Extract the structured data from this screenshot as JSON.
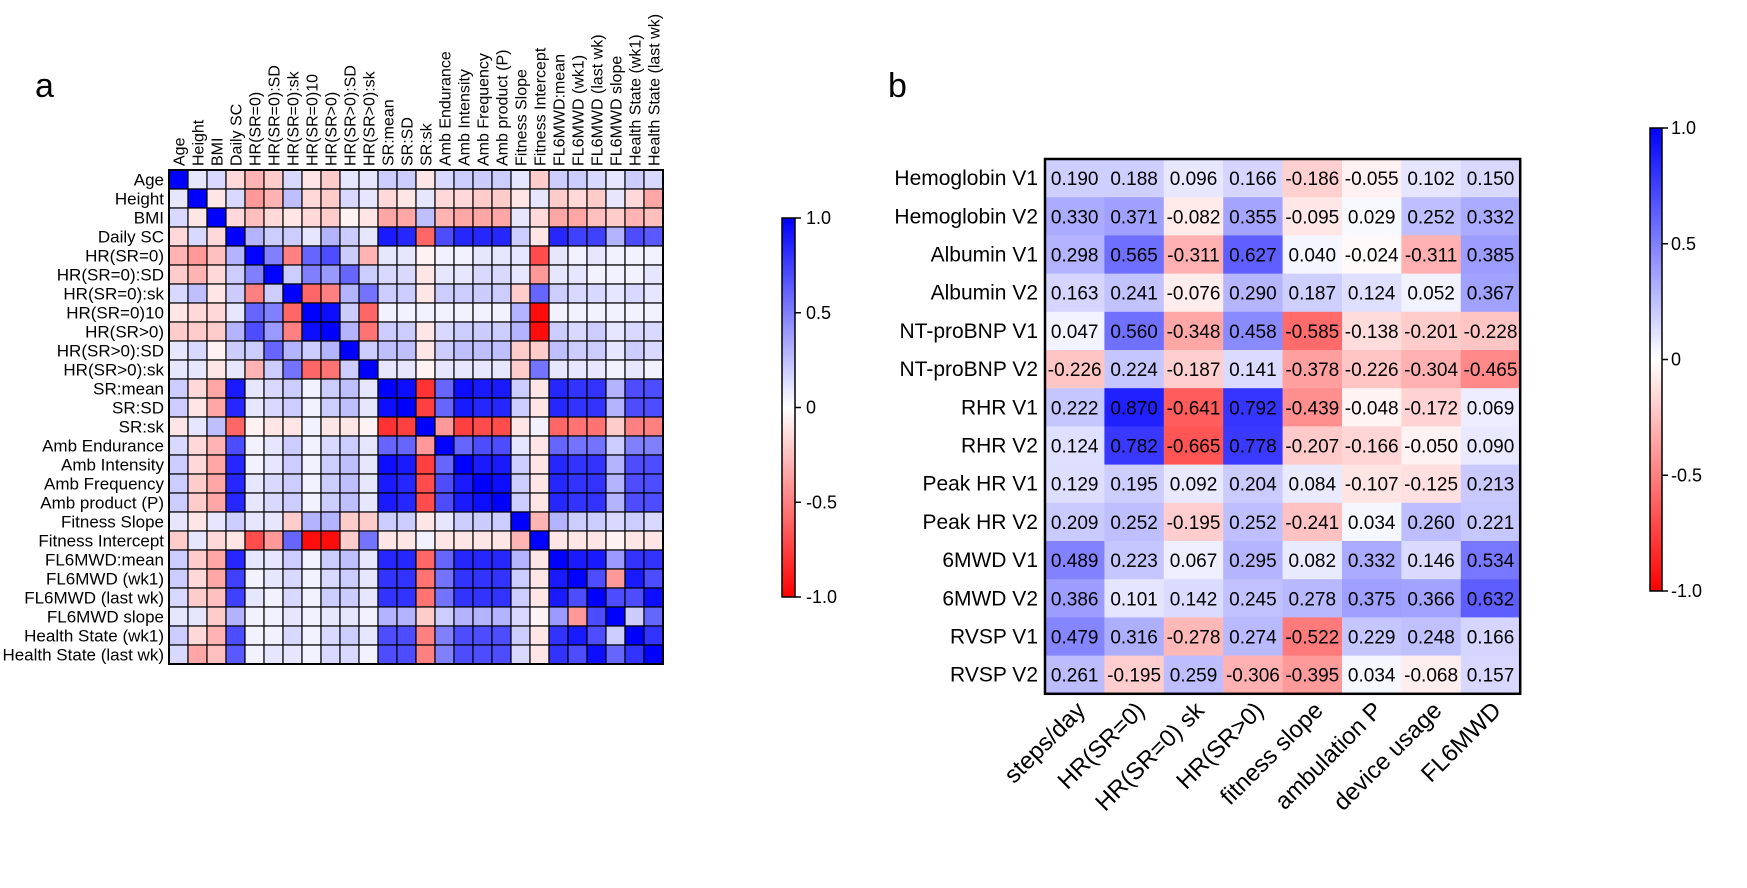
{
  "panels": {
    "a": "a",
    "b": "b"
  },
  "colors": {
    "positive": "#0000FF",
    "neutral": "#FFFFFF",
    "negative": "#FF0000"
  },
  "colorbar": {
    "ticks": [
      "1.0",
      "0.5",
      "0",
      "-0.5",
      "-1.0"
    ],
    "values": [
      1.0,
      0.5,
      0,
      -0.5,
      -1.0
    ]
  },
  "chart_data": [
    {
      "type": "heatmap",
      "panel": "a",
      "labels": [
        "Age",
        "Height",
        "BMI",
        "Daily SC",
        "HR(SR=0)",
        "HR(SR=0):SD",
        "HR(SR=0):sk",
        "HR(SR=0)10",
        "HR(SR>0)",
        "HR(SR>0):SD",
        "HR(SR>0):sk",
        "SR:mean",
        "SR:SD",
        "SR:sk",
        "Amb Endurance",
        "Amb Intensity",
        "Amb Frequency",
        "Amb product (P)",
        "Fitness Slope",
        "Fitness Intercept",
        "FL6MWD:mean",
        "FL6MWD (wk1)",
        "FL6MWD (last wk)",
        "FL6MWD slope",
        "Health State (wk1)",
        "Health State (last wk)"
      ],
      "values": [
        [
          1.0,
          0.1,
          0.15,
          -0.15,
          -0.3,
          -0.2,
          0.15,
          -0.1,
          -0.2,
          0.1,
          0.1,
          0.2,
          0.2,
          -0.1,
          0.15,
          0.2,
          0.2,
          0.2,
          0.1,
          -0.2,
          0.2,
          0.2,
          0.15,
          0.1,
          0.2,
          0.15
        ],
        [
          0.1,
          1.0,
          -0.1,
          0.15,
          -0.4,
          -0.3,
          0.25,
          -0.15,
          -0.2,
          0.15,
          0.1,
          -0.15,
          -0.1,
          0.1,
          -0.15,
          -0.15,
          -0.2,
          -0.2,
          -0.1,
          0.1,
          -0.2,
          -0.15,
          -0.2,
          0.1,
          -0.15,
          -0.35
        ],
        [
          0.15,
          -0.1,
          1.0,
          -0.15,
          -0.25,
          -0.15,
          -0.1,
          -0.15,
          -0.2,
          -0.05,
          -0.1,
          -0.35,
          -0.35,
          0.25,
          -0.3,
          -0.35,
          -0.35,
          -0.35,
          0.1,
          -0.15,
          -0.35,
          -0.35,
          -0.25,
          -0.2,
          -0.3,
          -0.25
        ],
        [
          -0.15,
          0.15,
          -0.15,
          1.0,
          0.3,
          0.2,
          0.2,
          0.1,
          0.3,
          0.2,
          0.1,
          0.9,
          0.85,
          -0.6,
          0.7,
          0.85,
          0.85,
          0.85,
          0.2,
          -0.1,
          0.85,
          0.75,
          0.75,
          0.3,
          0.7,
          0.65
        ],
        [
          -0.3,
          -0.4,
          -0.25,
          0.3,
          1.0,
          0.5,
          -0.5,
          0.6,
          0.7,
          0.2,
          -0.3,
          0.1,
          0.1,
          -0.05,
          0.05,
          0.05,
          0.1,
          0.1,
          0.1,
          -0.7,
          0.1,
          0.05,
          0.1,
          0.05,
          0.05,
          0.05
        ],
        [
          -0.2,
          -0.3,
          -0.15,
          0.2,
          0.5,
          1.0,
          0.2,
          0.5,
          0.4,
          0.6,
          0.2,
          0.15,
          0.15,
          -0.1,
          0.1,
          0.1,
          0.15,
          0.15,
          0.1,
          -0.4,
          0.1,
          0.1,
          0.05,
          0.05,
          0.05,
          0.1
        ],
        [
          0.15,
          0.25,
          -0.1,
          0.2,
          -0.5,
          0.2,
          1.0,
          -0.6,
          -0.5,
          0.3,
          0.55,
          0.2,
          0.2,
          -0.1,
          0.2,
          0.2,
          0.2,
          0.2,
          -0.2,
          0.6,
          0.2,
          0.15,
          0.15,
          0.1,
          0.15,
          0.1
        ],
        [
          -0.1,
          -0.15,
          -0.15,
          0.1,
          0.6,
          0.5,
          -0.6,
          1.0,
          0.95,
          0.2,
          -0.6,
          0.05,
          0.05,
          0.05,
          0.05,
          0.05,
          0.05,
          0.05,
          0.3,
          -0.95,
          0.05,
          0.05,
          0.05,
          0.05,
          0.05,
          0.05
        ],
        [
          -0.2,
          -0.2,
          -0.2,
          0.3,
          0.7,
          0.4,
          -0.5,
          0.95,
          1.0,
          0.3,
          -0.55,
          0.2,
          0.2,
          -0.1,
          0.15,
          0.2,
          0.2,
          0.2,
          0.3,
          -0.95,
          0.2,
          0.15,
          0.2,
          0.1,
          0.15,
          0.15
        ],
        [
          0.1,
          0.15,
          -0.05,
          0.2,
          0.2,
          0.6,
          0.3,
          0.2,
          0.3,
          1.0,
          0.2,
          0.25,
          0.25,
          -0.1,
          0.2,
          0.25,
          0.25,
          0.25,
          -0.2,
          -0.2,
          0.25,
          0.2,
          0.2,
          0.1,
          0.2,
          0.15
        ],
        [
          0.1,
          0.1,
          -0.1,
          0.1,
          -0.3,
          0.2,
          0.55,
          -0.6,
          -0.55,
          0.2,
          1.0,
          0.1,
          0.1,
          -0.05,
          0.1,
          0.1,
          0.1,
          0.1,
          -0.2,
          0.55,
          0.1,
          0.1,
          0.1,
          0.05,
          0.1,
          0.05
        ],
        [
          0.2,
          -0.15,
          -0.35,
          0.9,
          0.1,
          0.15,
          0.2,
          0.05,
          0.2,
          0.25,
          0.1,
          1.0,
          0.95,
          -0.8,
          0.6,
          0.95,
          0.9,
          0.9,
          0.2,
          -0.1,
          0.85,
          0.8,
          0.8,
          0.3,
          0.7,
          0.7
        ],
        [
          0.2,
          -0.1,
          -0.35,
          0.85,
          0.1,
          0.15,
          0.2,
          0.05,
          0.2,
          0.25,
          0.1,
          0.95,
          1.0,
          -0.75,
          0.6,
          0.9,
          0.85,
          0.85,
          0.2,
          -0.1,
          0.85,
          0.8,
          0.8,
          0.3,
          0.7,
          0.7
        ],
        [
          -0.1,
          0.1,
          0.25,
          -0.6,
          -0.05,
          -0.1,
          -0.1,
          0.05,
          -0.1,
          -0.1,
          -0.05,
          -0.8,
          -0.75,
          1.0,
          -0.4,
          -0.75,
          -0.7,
          -0.7,
          -0.1,
          0.05,
          -0.6,
          -0.55,
          -0.55,
          -0.2,
          -0.5,
          -0.5
        ],
        [
          0.15,
          -0.15,
          -0.3,
          0.7,
          0.05,
          0.1,
          0.2,
          0.05,
          0.15,
          0.2,
          0.1,
          0.6,
          0.6,
          -0.4,
          1.0,
          0.6,
          0.7,
          0.7,
          0.1,
          -0.1,
          0.6,
          0.55,
          0.55,
          0.2,
          0.5,
          0.5
        ],
        [
          0.2,
          -0.15,
          -0.35,
          0.85,
          0.05,
          0.1,
          0.2,
          0.05,
          0.2,
          0.25,
          0.1,
          0.95,
          0.9,
          -0.75,
          0.6,
          1.0,
          0.9,
          0.9,
          0.2,
          -0.1,
          0.85,
          0.8,
          0.8,
          0.3,
          0.7,
          0.7
        ],
        [
          0.2,
          -0.2,
          -0.35,
          0.85,
          0.1,
          0.15,
          0.2,
          0.05,
          0.2,
          0.25,
          0.1,
          0.9,
          0.85,
          -0.7,
          0.7,
          0.9,
          1.0,
          0.95,
          0.2,
          -0.1,
          0.85,
          0.8,
          0.8,
          0.3,
          0.7,
          0.7
        ],
        [
          0.2,
          -0.2,
          -0.35,
          0.85,
          0.1,
          0.15,
          0.2,
          0.05,
          0.2,
          0.25,
          0.1,
          0.9,
          0.85,
          -0.7,
          0.7,
          0.9,
          0.95,
          1.0,
          0.2,
          -0.1,
          0.85,
          0.8,
          0.8,
          0.3,
          0.7,
          0.7
        ],
        [
          0.1,
          -0.1,
          0.1,
          0.2,
          0.1,
          0.1,
          -0.2,
          0.3,
          0.3,
          -0.2,
          -0.2,
          0.2,
          0.2,
          -0.1,
          0.1,
          0.2,
          0.2,
          0.2,
          1.0,
          -0.3,
          0.3,
          0.2,
          0.2,
          0.15,
          0.2,
          0.15
        ],
        [
          -0.2,
          0.1,
          -0.15,
          -0.1,
          -0.7,
          -0.4,
          0.6,
          -0.95,
          -0.95,
          -0.2,
          0.55,
          -0.1,
          -0.1,
          0.05,
          -0.1,
          -0.1,
          -0.1,
          -0.1,
          -0.3,
          1.0,
          -0.1,
          -0.1,
          -0.1,
          -0.05,
          -0.1,
          -0.1
        ],
        [
          0.2,
          -0.2,
          -0.35,
          0.85,
          0.1,
          0.1,
          0.2,
          0.05,
          0.2,
          0.25,
          0.1,
          0.85,
          0.85,
          -0.6,
          0.6,
          0.85,
          0.85,
          0.85,
          0.3,
          -0.1,
          1.0,
          0.9,
          0.9,
          0.4,
          0.8,
          0.8
        ],
        [
          0.2,
          -0.15,
          -0.35,
          0.75,
          0.05,
          0.1,
          0.15,
          0.05,
          0.15,
          0.2,
          0.1,
          0.8,
          0.8,
          -0.55,
          0.55,
          0.8,
          0.8,
          0.8,
          0.2,
          -0.1,
          0.9,
          1.0,
          0.7,
          -0.4,
          0.9,
          0.7
        ],
        [
          0.15,
          -0.2,
          -0.25,
          0.75,
          0.1,
          0.05,
          0.15,
          0.05,
          0.2,
          0.2,
          0.1,
          0.8,
          0.8,
          -0.55,
          0.55,
          0.8,
          0.8,
          0.8,
          0.2,
          -0.1,
          0.9,
          0.7,
          1.0,
          0.7,
          0.7,
          0.95
        ],
        [
          0.1,
          0.1,
          -0.2,
          0.3,
          0.05,
          0.05,
          0.1,
          0.05,
          0.1,
          0.1,
          0.05,
          0.3,
          0.3,
          -0.2,
          0.2,
          0.3,
          0.3,
          0.3,
          0.15,
          -0.05,
          0.4,
          -0.4,
          0.7,
          1.0,
          0.2,
          0.6
        ],
        [
          0.2,
          -0.15,
          -0.3,
          0.7,
          0.05,
          0.05,
          0.15,
          0.05,
          0.15,
          0.2,
          0.1,
          0.7,
          0.7,
          -0.5,
          0.5,
          0.7,
          0.7,
          0.7,
          0.2,
          -0.1,
          0.8,
          0.9,
          0.7,
          0.2,
          1.0,
          0.8
        ],
        [
          0.15,
          -0.35,
          -0.25,
          0.65,
          0.05,
          0.1,
          0.1,
          0.05,
          0.15,
          0.15,
          0.05,
          0.7,
          0.7,
          -0.5,
          0.5,
          0.7,
          0.7,
          0.7,
          0.15,
          -0.1,
          0.8,
          0.7,
          0.95,
          0.6,
          0.8,
          1.0
        ]
      ],
      "zlim": [
        -1.0,
        1.0
      ]
    },
    {
      "type": "heatmap",
      "panel": "b",
      "rows": [
        "Hemoglobin V1",
        "Hemoglobin V2",
        "Albumin V1",
        "Albumin V2",
        "NT-proBNP V1",
        "NT-proBNP V2",
        "RHR V1",
        "RHR V2",
        "Peak HR V1",
        "Peak HR V2",
        "6MWD V1",
        "6MWD V2",
        "RVSP V1",
        "RVSP V2"
      ],
      "cols": [
        "steps/day",
        "HR(SR=0)",
        "HR(SR=0) sk",
        "HR(SR>0)",
        "fitness slope",
        "ambulation P",
        "device usage",
        "FL6MWD"
      ],
      "values": [
        [
          0.19,
          0.188,
          0.096,
          0.166,
          -0.186,
          -0.055,
          0.102,
          0.15
        ],
        [
          0.33,
          0.371,
          -0.082,
          0.355,
          -0.095,
          0.029,
          0.252,
          0.332
        ],
        [
          0.298,
          0.565,
          -0.311,
          0.627,
          0.04,
          -0.024,
          -0.311,
          0.385
        ],
        [
          0.163,
          0.241,
          -0.076,
          0.29,
          0.187,
          0.124,
          0.052,
          0.367
        ],
        [
          0.047,
          0.56,
          -0.348,
          0.458,
          -0.585,
          -0.138,
          -0.201,
          -0.228
        ],
        [
          -0.226,
          0.224,
          -0.187,
          0.141,
          -0.378,
          -0.226,
          -0.304,
          -0.465
        ],
        [
          0.222,
          0.87,
          -0.641,
          0.792,
          -0.439,
          -0.048,
          -0.172,
          0.069
        ],
        [
          0.124,
          0.782,
          -0.665,
          0.778,
          -0.207,
          -0.166,
          -0.05,
          0.09
        ],
        [
          0.129,
          0.195,
          0.092,
          0.204,
          0.084,
          -0.107,
          -0.125,
          0.213
        ],
        [
          0.209,
          0.252,
          -0.195,
          0.252,
          -0.241,
          0.034,
          0.26,
          0.221
        ],
        [
          0.489,
          0.223,
          0.067,
          0.295,
          0.082,
          0.332,
          0.146,
          0.534
        ],
        [
          0.386,
          0.101,
          0.142,
          0.245,
          0.278,
          0.375,
          0.366,
          0.632
        ],
        [
          0.479,
          0.316,
          -0.278,
          0.274,
          -0.522,
          0.229,
          0.248,
          0.166
        ],
        [
          0.261,
          -0.195,
          0.259,
          -0.306,
          -0.395,
          0.034,
          -0.068,
          0.157
        ]
      ],
      "cell_labels": [
        [
          "0.190",
          "0.188",
          "0.096",
          "0.166",
          "-0.186",
          "-0.055",
          "0.102",
          "0.150"
        ],
        [
          "0.330",
          "0.371",
          "-0.082",
          "0.355",
          "-0.095",
          "0.029",
          "0.252",
          "0.332"
        ],
        [
          "0.298",
          "0.565",
          "-0.311",
          "0.627",
          "0.040",
          "-0.024",
          "-0.311",
          "0.385"
        ],
        [
          "0.163",
          "0.241",
          "-0.076",
          "0.290",
          "0.187",
          "0.124",
          "0.052",
          "0.367"
        ],
        [
          "0.047",
          "0.560",
          "-0.348",
          "0.458",
          "-0.585",
          "-0.138",
          "-0.201",
          "-0.228"
        ],
        [
          "-0.226",
          "0.224",
          "-0.187",
          "0.141",
          "-0.378",
          "-0.226",
          "-0.304",
          "-0.465"
        ],
        [
          "0.222",
          "0.870",
          "-0.641",
          "0.792",
          "-0.439",
          "-0.048",
          "-0.172",
          "0.069"
        ],
        [
          "0.124",
          "0.782",
          "-0.665",
          "0.778",
          "-0.207",
          "-0.166",
          "-0.050",
          "0.090"
        ],
        [
          "0.129",
          "0.195",
          "0.092",
          "0.204",
          "0.084",
          "-0.107",
          "-0.125",
          "0.213"
        ],
        [
          "0.209",
          "0.252",
          "-0.195",
          "0.252",
          "-0.241",
          "0.034",
          "0.260",
          "0.221"
        ],
        [
          "0.489",
          "0.223",
          "0.067",
          "0.295",
          "0.082",
          "0.332",
          "0.146",
          "0.534"
        ],
        [
          "0.386",
          "0.101",
          "0.142",
          "0.245",
          "0.278",
          "0.375",
          "0.366",
          "0.632"
        ],
        [
          "0.479",
          "0.316",
          "-0.278",
          "0.274",
          "-0.522",
          "0.229",
          "0.248",
          "0.166"
        ],
        [
          "0.261",
          "-0.195",
          "0.259",
          "-0.306",
          "-0.395",
          "0.034",
          "-0.068",
          "0.157"
        ]
      ],
      "zlim": [
        -1.0,
        1.0
      ]
    }
  ]
}
